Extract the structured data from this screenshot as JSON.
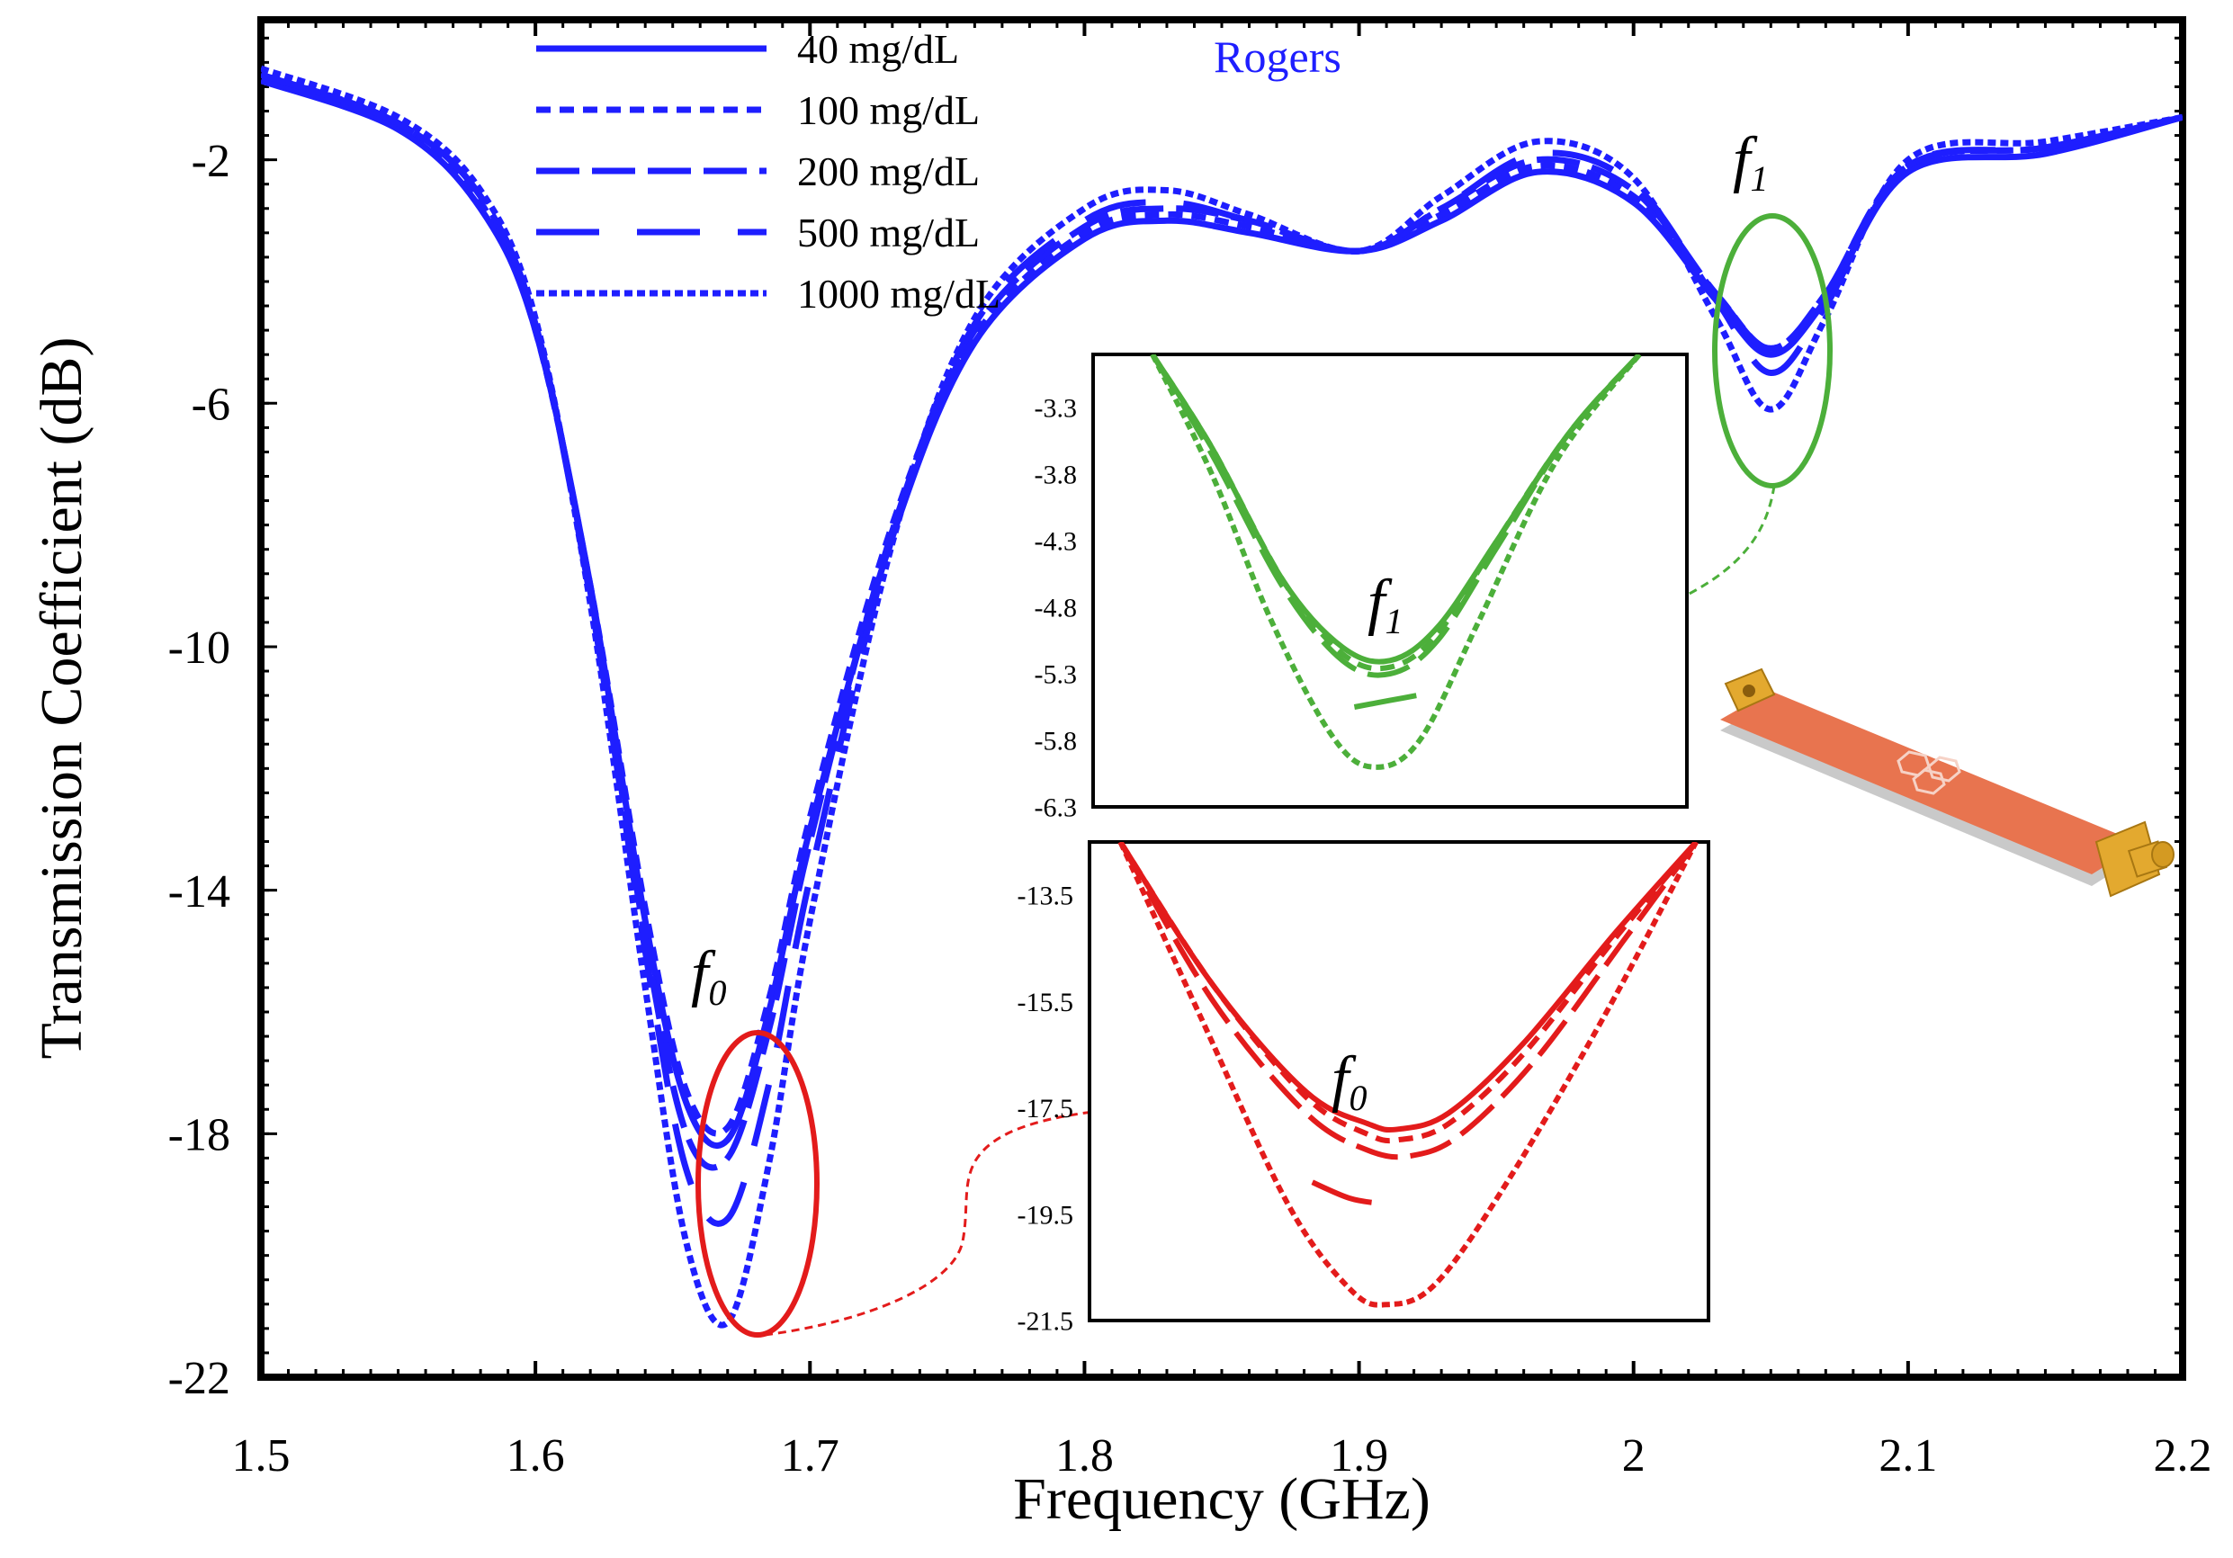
{
  "chart_data": [
    {
      "id": "main",
      "type": "line",
      "xlabel": "Frequency (GHz)",
      "ylabel": "Transmission Coefficient (dB)",
      "xlim": [
        1.5,
        2.2
      ],
      "ylim": [
        -22,
        0.3
      ],
      "xticks": [
        1.5,
        1.6,
        1.7,
        1.8,
        1.9,
        2.0,
        2.1,
        2.2
      ],
      "xtick_labels": [
        "1.5",
        "1.6",
        "1.7",
        "1.8",
        "1.9",
        "2",
        "2.1",
        "2.2"
      ],
      "yticks": [
        -2,
        -6,
        -10,
        -14,
        -18,
        -22
      ],
      "ytick_labels": [
        "-2",
        "-6",
        "-10",
        "-14",
        "-18",
        "-22"
      ],
      "grid": false,
      "legend_position": "top-left",
      "annotation_material": "Rogers",
      "marker_f0": "f",
      "marker_f0_sub": "0",
      "marker_f1": "f",
      "marker_f1_sub": "1",
      "series": [
        {
          "name": "40 mg/dL",
          "dash": "solid",
          "x": [
            1.5,
            1.55,
            1.58,
            1.6,
            1.62,
            1.64,
            1.655,
            1.67,
            1.685,
            1.7,
            1.73,
            1.76,
            1.8,
            1.83,
            1.86,
            1.9,
            1.93,
            1.965,
            2.0,
            2.03,
            2.05,
            2.07,
            2.1,
            2.15,
            2.2
          ],
          "y": [
            -0.7,
            -1.5,
            -2.8,
            -4.8,
            -9,
            -14.5,
            -17.5,
            -18.1,
            -16,
            -13,
            -8.2,
            -5,
            -3.3,
            -3,
            -3.2,
            -3.5,
            -3,
            -2.2,
            -2.7,
            -4.3,
            -5.2,
            -4.3,
            -2.2,
            -1.9,
            -1.3
          ]
        },
        {
          "name": "100 mg/dL",
          "dash": "short",
          "x": [
            1.5,
            1.55,
            1.58,
            1.6,
            1.62,
            1.64,
            1.655,
            1.67,
            1.685,
            1.7,
            1.73,
            1.76,
            1.8,
            1.83,
            1.86,
            1.9,
            1.93,
            1.965,
            2.0,
            2.03,
            2.05,
            2.07,
            2.1,
            2.15,
            2.2
          ],
          "y": [
            -0.6,
            -1.4,
            -2.7,
            -4.8,
            -9,
            -14.3,
            -17.3,
            -17.9,
            -15.8,
            -12.8,
            -8,
            -4.9,
            -3.2,
            -2.9,
            -3.1,
            -3.5,
            -2.9,
            -2.1,
            -2.6,
            -4.2,
            -5.1,
            -4.2,
            -2.1,
            -1.8,
            -1.3
          ]
        },
        {
          "name": "200 mg/dL",
          "dash": "long",
          "x": [
            1.5,
            1.55,
            1.58,
            1.6,
            1.62,
            1.64,
            1.655,
            1.67,
            1.685,
            1.7,
            1.73,
            1.76,
            1.8,
            1.83,
            1.86,
            1.9,
            1.93,
            1.965,
            2.0,
            2.03,
            2.05,
            2.07,
            2.1,
            2.15,
            2.2
          ],
          "y": [
            -0.6,
            -1.4,
            -2.6,
            -4.7,
            -9.1,
            -14.8,
            -18,
            -18.4,
            -16.3,
            -13.2,
            -8.1,
            -4.8,
            -3.1,
            -2.8,
            -3,
            -3.5,
            -2.8,
            -2,
            -2.5,
            -4.2,
            -5.1,
            -4.2,
            -2.1,
            -1.8,
            -1.3
          ]
        },
        {
          "name": "500 mg/dL",
          "dash": "longgap",
          "x": [
            1.5,
            1.55,
            1.58,
            1.6,
            1.62,
            1.64,
            1.655,
            1.67,
            1.685,
            1.7,
            1.73,
            1.76,
            1.8,
            1.83,
            1.86,
            1.9,
            1.93,
            1.965,
            2.0,
            2.03,
            2.05,
            2.07,
            2.1,
            2.15,
            2.2
          ],
          "y": [
            -0.6,
            -1.4,
            -2.6,
            -4.7,
            -9.2,
            -15,
            -18.6,
            -19.4,
            -17.2,
            -13.8,
            -8.2,
            -4.7,
            -3,
            -2.7,
            -3,
            -3.5,
            -2.8,
            -1.9,
            -2.4,
            -4.3,
            -5.5,
            -4.4,
            -2.1,
            -1.8,
            -1.3
          ]
        },
        {
          "name": "1000 mg/dL",
          "dash": "fine",
          "x": [
            1.5,
            1.55,
            1.58,
            1.6,
            1.62,
            1.64,
            1.655,
            1.67,
            1.685,
            1.7,
            1.73,
            1.76,
            1.8,
            1.83,
            1.86,
            1.9,
            1.93,
            1.965,
            2.0,
            2.03,
            2.05,
            2.07,
            2.1,
            2.15,
            2.2
          ],
          "y": [
            -0.5,
            -1.3,
            -2.5,
            -4.6,
            -9.3,
            -15.6,
            -19.8,
            -21.1,
            -18.5,
            -14.5,
            -8.3,
            -4.6,
            -2.8,
            -2.5,
            -2.9,
            -3.5,
            -2.6,
            -1.7,
            -2.3,
            -4.6,
            -6.1,
            -4.6,
            -2,
            -1.7,
            -1.3
          ]
        }
      ]
    },
    {
      "id": "inset_f1",
      "type": "line",
      "xlim": [
        0,
        1
      ],
      "ylim": [
        -6.3,
        -2.9
      ],
      "yticks": [
        -3.3,
        -3.8,
        -4.3,
        -4.8,
        -5.3,
        -5.8,
        -6.3
      ],
      "ytick_labels": [
        "-3.3",
        "-3.8",
        "-4.3",
        "-4.8",
        "-5.3",
        "-5.8",
        "-6.3"
      ],
      "marker": "f",
      "marker_sub": "1",
      "series": [
        {
          "name": "40 mg/dL",
          "dash": "solid",
          "x": [
            0.1,
            0.2,
            0.32,
            0.42,
            0.5,
            0.58,
            0.68,
            0.8,
            0.92
          ],
          "y": [
            -2.9,
            -3.6,
            -4.6,
            -5.1,
            -5.2,
            -4.95,
            -4.3,
            -3.5,
            -2.9
          ]
        },
        {
          "name": "100 mg/dL",
          "dash": "short",
          "x": [
            0.1,
            0.2,
            0.32,
            0.42,
            0.5,
            0.58,
            0.68,
            0.8,
            0.92
          ],
          "y": [
            -2.9,
            -3.6,
            -4.6,
            -5.15,
            -5.25,
            -5.0,
            -4.3,
            -3.5,
            -2.9
          ]
        },
        {
          "name": "200 mg/dL",
          "dash": "long",
          "x": [
            0.1,
            0.2,
            0.32,
            0.42,
            0.5,
            0.58,
            0.68,
            0.8,
            0.92
          ],
          "y": [
            -2.9,
            -3.65,
            -4.65,
            -5.2,
            -5.3,
            -5.05,
            -4.35,
            -3.5,
            -2.9
          ]
        },
        {
          "name": "500 mg/dL",
          "dash": "longgap",
          "x": [
            0.44,
            0.5,
            0.56
          ],
          "y": [
            -5.55,
            -5.5,
            -5.45
          ]
        },
        {
          "name": "1000 mg/dL",
          "dash": "fine",
          "x": [
            0.1,
            0.2,
            0.3,
            0.4,
            0.47,
            0.55,
            0.65,
            0.78,
            0.92
          ],
          "y": [
            -2.9,
            -3.8,
            -4.9,
            -5.75,
            -6.0,
            -5.8,
            -4.9,
            -3.7,
            -2.9
          ]
        }
      ]
    },
    {
      "id": "inset_f0",
      "type": "line",
      "xlim": [
        0,
        1
      ],
      "ylim": [
        -21.5,
        -12.5
      ],
      "yticks": [
        -13.5,
        -15.5,
        -17.5,
        -19.5,
        -21.5
      ],
      "ytick_labels": [
        "-13.5",
        "-15.5",
        "-17.5",
        "-19.5",
        "-21.5"
      ],
      "marker": "f",
      "marker_sub": "0",
      "series": [
        {
          "name": "40 mg/dL",
          "dash": "solid",
          "x": [
            0.05,
            0.2,
            0.35,
            0.45,
            0.5,
            0.58,
            0.7,
            0.85,
            0.98
          ],
          "y": [
            -12.5,
            -15.2,
            -17.2,
            -17.8,
            -17.9,
            -17.6,
            -16.3,
            -14.2,
            -12.5
          ]
        },
        {
          "name": "100 mg/dL",
          "dash": "short",
          "x": [
            0.05,
            0.2,
            0.35,
            0.45,
            0.5,
            0.58,
            0.7,
            0.85,
            0.98
          ],
          "y": [
            -12.5,
            -15.2,
            -17.3,
            -18.0,
            -18.1,
            -17.8,
            -16.5,
            -14.3,
            -12.5
          ]
        },
        {
          "name": "200 mg/dL",
          "dash": "long",
          "x": [
            0.05,
            0.2,
            0.35,
            0.45,
            0.52,
            0.6,
            0.72,
            0.86,
            0.98
          ],
          "y": [
            -12.5,
            -15.5,
            -17.6,
            -18.3,
            -18.4,
            -18.0,
            -16.6,
            -14.4,
            -12.5
          ]
        },
        {
          "name": "500 mg/dL",
          "dash": "longgap",
          "x": [
            0.36,
            0.42,
            0.47
          ],
          "y": [
            -18.9,
            -19.2,
            -19.3
          ]
        },
        {
          "name": "1000 mg/dL",
          "dash": "fine",
          "x": [
            0.05,
            0.18,
            0.32,
            0.42,
            0.48,
            0.56,
            0.68,
            0.84,
            0.98
          ],
          "y": [
            -12.5,
            -15.8,
            -19.3,
            -20.9,
            -21.2,
            -20.8,
            -18.8,
            -15.6,
            -12.5
          ]
        }
      ]
    }
  ],
  "colors": {
    "main": "#1e1eff",
    "inset_f1": "#4caf3a",
    "inset_f0": "#e31b1b",
    "axes": "#000000",
    "device_board": "#e8744f",
    "device_connector": "#e3a92f"
  }
}
